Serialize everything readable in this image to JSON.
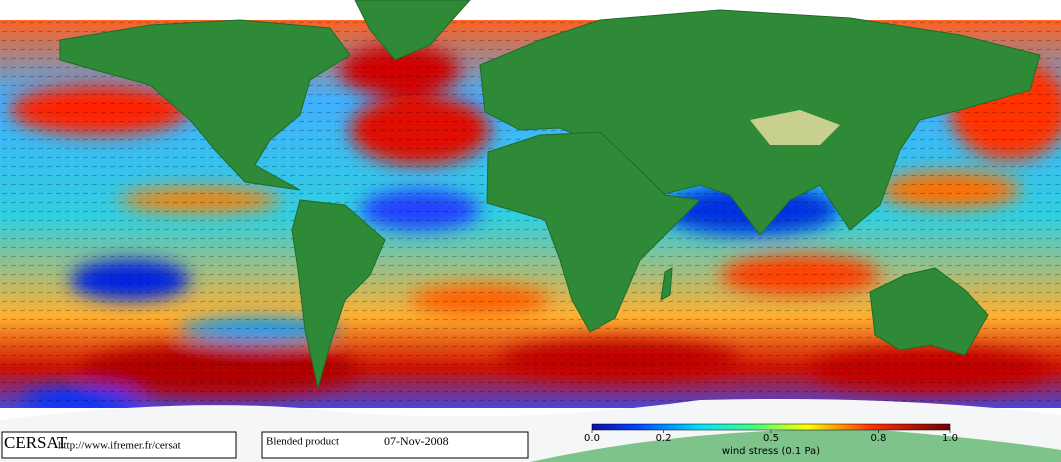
{
  "footer": {
    "logo": "CERSAT",
    "url": "http://www.ifremer.fr/cersat",
    "product": "Blended product",
    "date": "07-Nov-2008"
  },
  "colorbar": {
    "title": "wind stress (0.1 Pa)",
    "lim": [
      0,
      1
    ],
    "ticks": [
      {
        "value": 0,
        "label": "0.0"
      },
      0.2,
      0.5,
      0.8,
      {
        "value": 1,
        "label": "1.0"
      }
    ]
  }
}
